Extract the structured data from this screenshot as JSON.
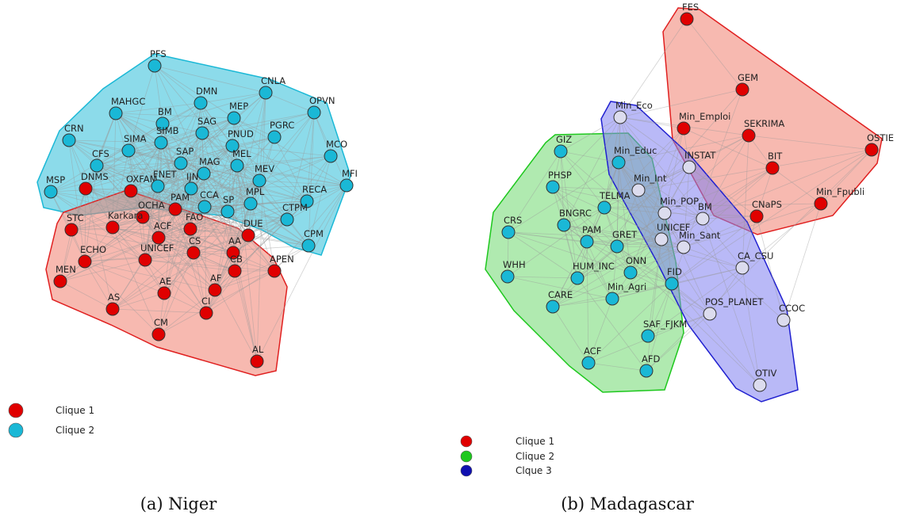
{
  "panels": [
    {
      "caption": "(a) Niger",
      "nodes": [
        {
          "label": "PFS",
          "color": "#1ab8d6"
        },
        {
          "label": "CNLA",
          "color": "#1ab8d6"
        },
        {
          "label": "OPVN",
          "color": "#1ab8d6"
        },
        {
          "label": "DMN",
          "color": "#1ab8d6"
        },
        {
          "label": "MEP",
          "color": "#1ab8d6"
        },
        {
          "label": "MAHGC",
          "color": "#1ab8d6"
        },
        {
          "label": "BM",
          "color": "#1ab8d6"
        },
        {
          "label": "SAG",
          "color": "#1ab8d6"
        },
        {
          "label": "PGRC",
          "color": "#1ab8d6"
        },
        {
          "label": "CRN",
          "color": "#1ab8d6"
        },
        {
          "label": "SIMB",
          "color": "#1ab8d6"
        },
        {
          "label": "SIMA",
          "color": "#1ab8d6"
        },
        {
          "label": "PNUD",
          "color": "#1ab8d6"
        },
        {
          "label": "MCO",
          "color": "#1ab8d6"
        },
        {
          "label": "CFS",
          "color": "#1ab8d6"
        },
        {
          "label": "SAP",
          "color": "#1ab8d6"
        },
        {
          "label": "MEL",
          "color": "#1ab8d6"
        },
        {
          "label": "MEV",
          "color": "#1ab8d6"
        },
        {
          "label": "MFI",
          "color": "#1ab8d6"
        },
        {
          "label": "MSP",
          "color": "#1ab8d6"
        },
        {
          "label": "DNMS",
          "color": "#e00000"
        },
        {
          "label": "OXFAM",
          "color": "#e00000"
        },
        {
          "label": "FNET",
          "color": "#1ab8d6"
        },
        {
          "label": "MAG",
          "color": "#1ab8d6"
        },
        {
          "label": "IJN",
          "color": "#1ab8d6"
        },
        {
          "label": "PAM",
          "color": "#e00000"
        },
        {
          "label": "CCA",
          "color": "#1ab8d6"
        },
        {
          "label": "SP",
          "color": "#1ab8d6"
        },
        {
          "label": "MPL",
          "color": "#1ab8d6"
        },
        {
          "label": "RECA",
          "color": "#1ab8d6"
        },
        {
          "label": "OCHA",
          "color": "#e00000"
        },
        {
          "label": "Karkara",
          "color": "#e00000"
        },
        {
          "label": "FAO",
          "color": "#e00000"
        },
        {
          "label": "ACF",
          "color": "#e00000"
        },
        {
          "label": "DUE",
          "color": "#e00000"
        },
        {
          "label": "CTPM",
          "color": "#1ab8d6"
        },
        {
          "label": "STC",
          "color": "#e00000"
        },
        {
          "label": "CS",
          "color": "#e00000"
        },
        {
          "label": "AA",
          "color": "#e00000"
        },
        {
          "label": "CPM",
          "color": "#1ab8d6"
        },
        {
          "label": "ECHO",
          "color": "#e00000"
        },
        {
          "label": "UNICEF",
          "color": "#e00000"
        },
        {
          "label": "CB",
          "color": "#e00000"
        },
        {
          "label": "APEN",
          "color": "#e00000"
        },
        {
          "label": "MEN",
          "color": "#e00000"
        },
        {
          "label": "AE",
          "color": "#e00000"
        },
        {
          "label": "AF",
          "color": "#e00000"
        },
        {
          "label": "AS",
          "color": "#e00000"
        },
        {
          "label": "CI",
          "color": "#e00000"
        },
        {
          "label": "CM",
          "color": "#e00000"
        },
        {
          "label": "AL",
          "color": "#e00000"
        }
      ],
      "legend": [
        {
          "label": "Clique 1",
          "color": "#e00000"
        },
        {
          "label": "Clique 2",
          "color": "#1ab8d6"
        }
      ]
    },
    {
      "caption": "(b) Madagascar",
      "nodes": [
        {
          "label": "FES",
          "color": "#e00000"
        },
        {
          "label": "GEM",
          "color": "#e00000"
        },
        {
          "label": "Min_Emploi",
          "color": "#e00000"
        },
        {
          "label": "SEKRIMA",
          "color": "#e00000"
        },
        {
          "label": "OSTIE",
          "color": "#e00000"
        },
        {
          "label": "BIT",
          "color": "#e00000"
        },
        {
          "label": "Min_Fpubli",
          "color": "#e00000"
        },
        {
          "label": "CNaPS",
          "color": "#e00000"
        },
        {
          "label": "Min_Eco",
          "color": "#dcdcee"
        },
        {
          "label": "GIZ",
          "color": "#1ab8d6"
        },
        {
          "label": "Min_Educ",
          "color": "#1ab8d6"
        },
        {
          "label": "INSTAT",
          "color": "#dcdcee"
        },
        {
          "label": "PHSP",
          "color": "#1ab8d6"
        },
        {
          "label": "Min_Int",
          "color": "#dcdcee"
        },
        {
          "label": "TELMA",
          "color": "#1ab8d6"
        },
        {
          "label": "Min_POP",
          "color": "#dcdcee"
        },
        {
          "label": "BM",
          "color": "#dcdcee"
        },
        {
          "label": "CRS",
          "color": "#1ab8d6"
        },
        {
          "label": "BNGRC",
          "color": "#1ab8d6"
        },
        {
          "label": "PAM",
          "color": "#1ab8d6"
        },
        {
          "label": "GRET",
          "color": "#1ab8d6"
        },
        {
          "label": "UNICEF",
          "color": "#dcdcee"
        },
        {
          "label": "Min_Sant",
          "color": "#dcdcee"
        },
        {
          "label": "CA_CSU",
          "color": "#dcdcee"
        },
        {
          "label": "WHH",
          "color": "#1ab8d6"
        },
        {
          "label": "HUM_INC",
          "color": "#1ab8d6"
        },
        {
          "label": "ONN",
          "color": "#1ab8d6"
        },
        {
          "label": "FID",
          "color": "#1ab8d6"
        },
        {
          "label": "Min_Agri",
          "color": "#1ab8d6"
        },
        {
          "label": "CARE",
          "color": "#1ab8d6"
        },
        {
          "label": "POS_PLANET",
          "color": "#dcdcee"
        },
        {
          "label": "CCOC",
          "color": "#dcdcee"
        },
        {
          "label": "SAF_FJKM",
          "color": "#1ab8d6"
        },
        {
          "label": "ACF",
          "color": "#1ab8d6"
        },
        {
          "label": "AFD",
          "color": "#1ab8d6"
        },
        {
          "label": "OTIV",
          "color": "#dcdcee"
        }
      ],
      "legend": [
        {
          "label": "Clique 1",
          "color": "#e00000"
        },
        {
          "label": "Clique 2",
          "color": "#1ec81e"
        },
        {
          "label": "Clque 3",
          "color": "#1010b0"
        }
      ]
    }
  ]
}
